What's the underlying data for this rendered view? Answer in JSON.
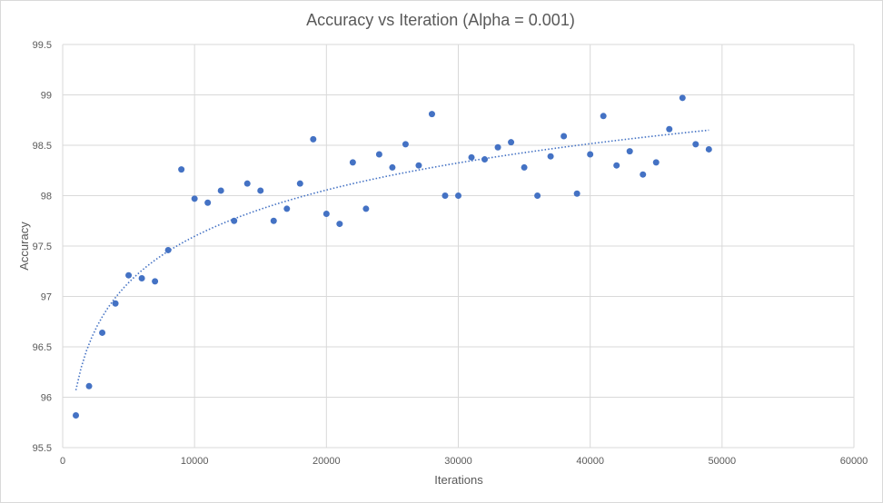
{
  "chart_data": {
    "type": "scatter",
    "title": "Accuracy vs Iteration (Alpha = 0.001)",
    "xlabel": "Iterations",
    "ylabel": "Accuracy",
    "xlim": [
      0,
      60000
    ],
    "ylim": [
      95.5,
      99.5
    ],
    "xticks": [
      0,
      10000,
      20000,
      30000,
      40000,
      50000,
      60000
    ],
    "yticks": [
      95.5,
      96,
      96.5,
      97,
      97.5,
      98,
      98.5,
      99,
      99.5
    ],
    "grid": true,
    "legend": "none",
    "colors": {
      "points": "#4472c4",
      "trendline": "#4472c4",
      "grid": "#d9d9d9",
      "text": "#595959"
    },
    "series": [
      {
        "x": [
          1000,
          2000,
          3000,
          4000,
          5000,
          6000,
          7000,
          8000,
          9000,
          10000,
          11000,
          12000,
          13000,
          14000,
          15000,
          16000,
          17000,
          18000,
          19000,
          20000,
          21000,
          22000,
          23000,
          24000,
          25000,
          26000,
          27000,
          28000,
          29000,
          30000,
          31000,
          32000,
          33000,
          34000,
          35000,
          36000,
          37000,
          38000,
          39000,
          40000,
          41000,
          42000,
          43000,
          44000,
          45000,
          46000,
          47000,
          48000,
          49000
        ],
        "values": [
          95.82,
          96.11,
          96.64,
          96.93,
          97.21,
          97.18,
          97.15,
          97.46,
          98.26,
          97.97,
          97.93,
          98.05,
          97.75,
          98.12,
          98.05,
          97.75,
          97.87,
          98.12,
          98.56,
          97.82,
          97.72,
          98.33,
          97.87,
          98.41,
          98.28,
          98.51,
          98.3,
          98.81,
          98.0,
          98.0,
          98.38,
          98.36,
          98.48,
          98.53,
          98.28,
          98.0,
          98.39,
          98.59,
          98.02,
          98.41,
          98.79,
          98.3,
          98.44,
          98.21,
          98.33,
          98.66,
          98.97,
          98.51,
          98.46
        ]
      }
    ],
    "trendline": {
      "type": "logarithmic",
      "x_start": 1000,
      "x_end": 49000,
      "y_start": 96.07,
      "y_end": 98.65
    }
  }
}
